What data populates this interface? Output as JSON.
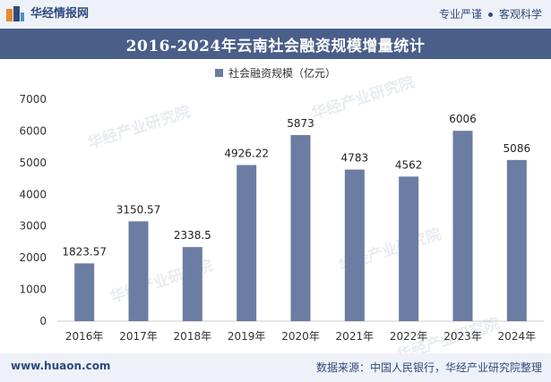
{
  "header": {
    "brand": "华经情报网",
    "slogan_left": "专业严谨",
    "slogan_right": "客观科学"
  },
  "footer": {
    "site": "www.huaon.com",
    "source": "数据来源：中国人民银行，华经产业研究院整理"
  },
  "watermark": "华经产业研究院",
  "colors": {
    "bar": "#6b7da3",
    "title_bg": "#4a5e8a",
    "accent": "#2f4a7e"
  },
  "chart_data": {
    "type": "bar",
    "title": "2016-2024年云南社会融资规模增量统计",
    "categories": [
      "2016年",
      "2017年",
      "2018年",
      "2019年",
      "2020年",
      "2021年",
      "2022年",
      "2023年",
      "2024年"
    ],
    "series": [
      {
        "name": "社会融资规模（亿元）",
        "values": [
          1823.57,
          3150.57,
          2338.5,
          4926.22,
          5873,
          4783,
          4562,
          6006,
          5086
        ]
      }
    ],
    "value_labels": [
      "1823.57",
      "3150.57",
      "2338.5",
      "4926.22",
      "5873",
      "4783",
      "4562",
      "6006",
      "5086"
    ],
    "ylim": [
      0,
      7000
    ],
    "yticks": [
      0,
      1000,
      2000,
      3000,
      4000,
      5000,
      6000,
      7000
    ],
    "xlabel": "",
    "ylabel": "",
    "legend_position": "top-center",
    "grid": false
  }
}
